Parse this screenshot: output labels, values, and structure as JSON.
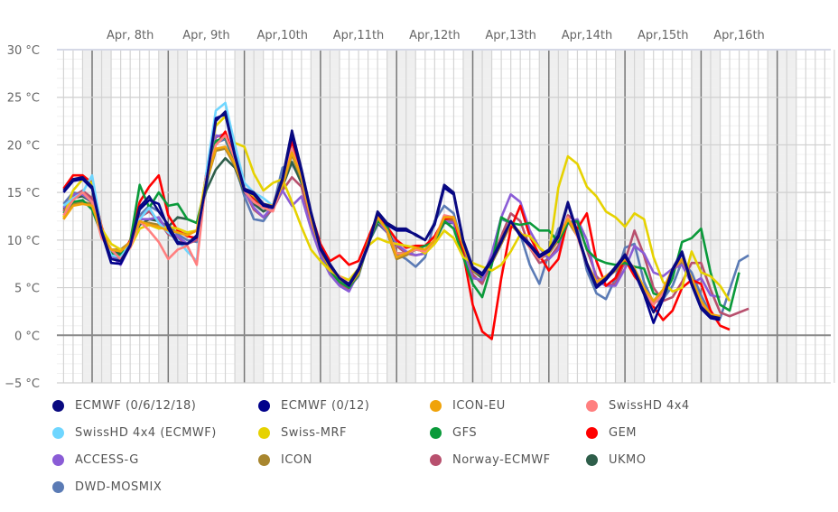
{
  "chart_data": {
    "type": "line",
    "title": "",
    "xlabel": "",
    "ylabel": "",
    "unit": "°C",
    "ylim": [
      -5,
      30
    ],
    "y_ticks": [
      "30 °C",
      "25 °C",
      "20 °C",
      "15 °C",
      "10 °C",
      "5 °C",
      "0 °C",
      "−5 °C"
    ],
    "y_tick_values": [
      30,
      25,
      20,
      15,
      10,
      5,
      0,
      -5
    ],
    "x_day_labels": [
      "Apr, 8th",
      "Apr, 9th",
      "Apr,10th",
      "Apr,11th",
      "Apr,12th",
      "Apr,13th",
      "Apr,14th",
      "Apr,15th",
      "Apr,16th"
    ],
    "x_range_hours": [
      13,
      261
    ],
    "x_step_hours": 3,
    "start_hour": 15,
    "grid": true,
    "night_shading": "21:00-06:00",
    "legend_position": "bottom",
    "series": [
      {
        "name": "ECMWF (0/6/12/18)",
        "color": "#0a0a80",
        "values": [
          15.2,
          16.4,
          16.6,
          15.6,
          11,
          8,
          7.8,
          9.5,
          13.5,
          14.6,
          13,
          11.6,
          9.8,
          9.6,
          10.5,
          16,
          22.5,
          23.5,
          19,
          15.4,
          15,
          13.8,
          13.5,
          16.5,
          21.5,
          17.5,
          13,
          9.2,
          7.5,
          6,
          5.4,
          7,
          9.5,
          13,
          11.8,
          11.2,
          11.2,
          10.5,
          10,
          11.8,
          15.8,
          15,
          10,
          7.2,
          6.5,
          8,
          10,
          12,
          10.6,
          9.6,
          8.4,
          9,
          10.5,
          14,
          10.8,
          7.6,
          5.2,
          6,
          7.2,
          8.5,
          6.8,
          4.5,
          2.4,
          4,
          7,
          8.8,
          5.5,
          3,
          2,
          1.8
        ]
      },
      {
        "name": "ECMWF (0/12)",
        "color": "#00008b",
        "values": [
          15,
          16.2,
          16.4,
          15.4,
          10.8,
          7.6,
          7.5,
          9.4,
          13.2,
          14.2,
          13.8,
          11.2,
          9.6,
          9.6,
          10.3,
          16,
          22.8,
          23.2,
          18.8,
          15.2,
          14.8,
          13.6,
          13.4,
          16.3,
          21,
          17.2,
          12.8,
          9,
          7.3,
          6,
          5.2,
          6.8,
          9.3,
          12.8,
          11.6,
          11,
          11,
          10.6,
          10,
          11.6,
          15.5,
          14.8,
          9.8,
          7,
          6.3,
          7.8,
          9.8,
          12,
          10.4,
          9.4,
          8.2,
          8.8,
          10.3,
          13.8,
          10.6,
          7.4,
          5,
          5.8,
          7,
          8.3,
          6.6,
          4.3,
          1.3,
          3.8,
          6.8,
          8.6,
          5.3,
          2.8,
          1.8,
          1.6
        ]
      },
      {
        "name": "ICON-EU",
        "color": "#f0a30a",
        "values": [
          12.2,
          13.6,
          13.8,
          13.6,
          10.8,
          9,
          8.8,
          9.8,
          12,
          11.6,
          11.4,
          11,
          10.8,
          10.5,
          11,
          16.2,
          19.6,
          19.8,
          18,
          15.4,
          14.6,
          13.8,
          13.6,
          15.8,
          19.2,
          16.6,
          12.4,
          9,
          7,
          6,
          5.2,
          6.5,
          9.8,
          12.4,
          11,
          8.2,
          8.6,
          9.2,
          9,
          10,
          12.4,
          12.4,
          9.4,
          7,
          6.4,
          7.8,
          9.8,
          11.8,
          10.8,
          9.4,
          8.2,
          8.8,
          10.2,
          12.2,
          10.6,
          7.6,
          5.6,
          6.2,
          7,
          8,
          7,
          5,
          3.6,
          4.8,
          7,
          8,
          6,
          3.6,
          2.2,
          2
        ]
      },
      {
        "name": "SwissHD 4x4",
        "color": "#ff7f7f",
        "values": [
          12.6,
          14.2,
          15,
          14,
          10.2,
          9,
          8,
          9.2,
          12,
          11,
          9.8,
          8,
          9,
          9.4,
          7.4,
          16.5,
          20,
          21,
          18.5,
          15.2,
          14,
          13.4,
          13,
          16,
          19.6,
          16.5,
          12.2,
          9.2,
          7,
          6.2,
          5.4,
          6.6,
          9.6,
          12.4,
          11,
          8.6,
          8.6,
          9,
          8.8,
          10,
          12.6,
          12.4,
          9.4,
          7,
          6.4,
          7.8,
          9.8,
          12,
          10.6,
          9.2,
          8,
          8.8,
          10.2,
          12.4,
          10.4,
          7.4,
          5.4,
          6,
          7,
          8.2,
          7,
          4.6,
          3.2,
          4.4,
          6.8,
          8,
          5.8,
          3.4,
          2,
          1.8
        ]
      },
      {
        "name": "SwissHD 4x4 (ECMWF)",
        "color": "#6fd6ff",
        "values": [
          13.6,
          14.4,
          15,
          16.8,
          11,
          8.4,
          8.2,
          9.6,
          12.2,
          13.4,
          11.8,
          10.8,
          10,
          8.8,
          7.8,
          17,
          23.6,
          24.4,
          20,
          16,
          15,
          14.4,
          13.6,
          16
        ]
      },
      {
        "name": "Swiss-MRF",
        "color": "#e6d200",
        "values": [
          12.4,
          15.2,
          16.4,
          16,
          11.2,
          9.6,
          9,
          9.2,
          11.2,
          11.6,
          11.2,
          11.4,
          11.2,
          10.8,
          11,
          16.8,
          22,
          23,
          20.2,
          19.8,
          17,
          15.2,
          16,
          16.4,
          14,
          11.4,
          9,
          7.8,
          6.8,
          6.2,
          5.8,
          7,
          9.4,
          10.2,
          9.8,
          9.6,
          9.4,
          9.2,
          8.6,
          9.6,
          11,
          10.2,
          8.2,
          7.6,
          7.2,
          6.8,
          7.4,
          8.8,
          10.6,
          10.4,
          9.2,
          8.4,
          15.5,
          18.8,
          18,
          15.6,
          14.6,
          13,
          12.4,
          11.4,
          12.8,
          12.2,
          8.2,
          5.6,
          4.6,
          5,
          8.8,
          6.6,
          6.2,
          5.2,
          3.6
        ]
      },
      {
        "name": "GFS",
        "color": "#0a9a3a",
        "values": [
          12.8,
          14,
          14.2,
          13.2,
          10.6,
          8.6,
          8.4,
          9.8,
          15.8,
          13.4,
          15,
          13.6,
          13.8,
          12.2,
          11.8,
          16,
          20.4,
          20.8,
          18.4,
          15.2,
          14.6,
          13.6,
          13.6,
          16.2,
          19.6,
          16.4,
          12.4,
          9.2,
          6.8,
          5.6,
          5,
          6.4,
          9.6,
          12,
          11.4,
          8.6,
          8.6,
          9,
          9.4,
          9.8,
          12,
          11.2,
          8.2,
          5.4,
          4,
          7.4,
          12.4,
          11.8,
          11.6,
          11.8,
          11,
          11,
          9.8,
          11.8,
          12,
          9,
          8,
          7.6,
          7.4,
          7.6,
          7.2,
          7,
          4.4,
          4,
          6,
          9.8,
          10.2,
          11.2,
          6.6,
          3.2,
          2.6,
          6.6
        ]
      },
      {
        "name": "GEM",
        "color": "#ff0000",
        "values": [
          15.4,
          16.8,
          16.8,
          16,
          11.4,
          8.6,
          8.2,
          10,
          14,
          15.6,
          16.8,
          12.6,
          11,
          10.4,
          10.2,
          17,
          20,
          21.4,
          18.4,
          15.2,
          14.4,
          13.4,
          13.6,
          16.4,
          20.4,
          17,
          12.8,
          9.6,
          7.8,
          8.4,
          7.4,
          7.8,
          10.2,
          12.6,
          11.4,
          10,
          9.2,
          9.4,
          9.4,
          10.4,
          12.2,
          12.4,
          8.6,
          3.2,
          0.4,
          -0.4,
          6,
          11.2,
          13.6,
          10.4,
          8.4,
          6.8,
          8,
          12.2,
          11.2,
          12.8,
          7.8,
          5.2,
          6,
          8,
          6.2,
          5,
          3,
          1.6,
          2.6,
          5,
          5.8,
          5.4,
          2.6,
          1,
          0.6
        ]
      },
      {
        "name": "ACCESS-G",
        "color": "#8a5cd6",
        "values": [
          13.4,
          14.8,
          14.8,
          14,
          10.4,
          8.4,
          7.4,
          9.4,
          12.2,
          12.2,
          12.4,
          10.8,
          10.4,
          9.6,
          10.2,
          16.2,
          21,
          20.8,
          18.4,
          15.2,
          13.4,
          12.4,
          13.6,
          15.2,
          13.6,
          14.6,
          11.2,
          8.4,
          6.4,
          5.2,
          4.6,
          6.6,
          9.6,
          12,
          10.8,
          9.6,
          8.8,
          8.4,
          8.6,
          9.8,
          12,
          11.8,
          8.6,
          6,
          5.8,
          8.6,
          12.4,
          14.8,
          14,
          11,
          9.2,
          8,
          9,
          11.8,
          12.2,
          10,
          5.8,
          5.2,
          5.2,
          7,
          9.4,
          8.6,
          6.6,
          6.2,
          7,
          7.4,
          5.4,
          6,
          4.2,
          4
        ]
      },
      {
        "name": "ICON",
        "color": "#a8862e",
        "values": [
          12.2,
          13.8,
          14,
          13.8,
          10.6,
          9,
          9,
          9.8,
          11.8,
          11.8,
          11.6,
          11.2,
          10.8,
          10.6,
          11,
          16,
          19.4,
          19.6,
          17.8,
          15.2,
          14.4,
          13.6,
          13.4,
          15.6,
          19,
          16.4,
          12.2,
          8.8,
          6.8,
          5.8,
          5,
          6.4,
          9.6,
          12.2,
          10.8,
          8,
          8.4,
          9,
          8.8,
          9.8,
          12.2,
          12.2,
          9.2,
          6.8,
          6.2,
          7.6,
          9.6,
          11.6,
          10.6,
          9.2,
          8,
          8.6,
          10,
          12,
          10.4,
          7.4,
          5.4,
          6,
          6.8,
          7.8,
          6.8,
          4.8,
          3.4,
          4.6,
          6.8,
          7.8,
          5.8,
          3.4,
          2,
          1.8
        ]
      },
      {
        "name": "Norway-ECMWF",
        "color": "#b8506e",
        "values": [
          13,
          14.6,
          15.2,
          14.4,
          10.8,
          8.8,
          8,
          9.4,
          12.4,
          13,
          12,
          10.6,
          10.2,
          9.6,
          10,
          16.2,
          20.8,
          21.2,
          18.6,
          15.2,
          13.2,
          12.4,
          13.2,
          15.2,
          16.6,
          15.6,
          11.8,
          8.6,
          6.4,
          5.4,
          4.8,
          6.4,
          9.6,
          12.8,
          11,
          9.4,
          8.6,
          8.4,
          8.6,
          9.8,
          12.2,
          12,
          9,
          6.4,
          5.4,
          7.8,
          10.4,
          12.8,
          12,
          9.2,
          7.6,
          8,
          9.4,
          12.6,
          11.8,
          9,
          6.2,
          5.2,
          5.4,
          7.8,
          11,
          8.4,
          5,
          3.6,
          4,
          5.6,
          7.6,
          7.6,
          4.8,
          2.4,
          2,
          2.4,
          2.8
        ]
      },
      {
        "name": "UKMO",
        "color": "#2e5e4a",
        "values": [
          13.2,
          14.4,
          14.6,
          14,
          10.6,
          8.8,
          8.6,
          9.4,
          11.6,
          12.2,
          12,
          11.4,
          12.4,
          12.2,
          11.8,
          15.2,
          17.4,
          18.6,
          17.6,
          15,
          13.8,
          13,
          13.6,
          15.6,
          18.2,
          16,
          12,
          8.8,
          7,
          6,
          5.2,
          6.6,
          9.6,
          11.8,
          10.8,
          8.6,
          8.6,
          9,
          9,
          9.8,
          11.8,
          11.8,
          9.2,
          6.8,
          6,
          7.6,
          9.6,
          11.8,
          10.6,
          9.2,
          8,
          8.6,
          10,
          12,
          10.6,
          7.6,
          5.4,
          6,
          6.8,
          7.8,
          6.8,
          4.8,
          3.4,
          4.6,
          6.8,
          7.8,
          5.8,
          3.4,
          2,
          1.8
        ]
      },
      {
        "name": "DWD-MOSMIX",
        "color": "#5b7bb5",
        "values": [
          13.8,
          15,
          14.8,
          14.2,
          10.6,
          8.2,
          8,
          9.2,
          12.6,
          13.6,
          13,
          11.6,
          10.6,
          10,
          9.8,
          15.6,
          20.2,
          20.6,
          18,
          14.6,
          12.2,
          12,
          13.4,
          17.6,
          18,
          16.2,
          11.8,
          8.4,
          6.4,
          5.4,
          5,
          6.2,
          9.6,
          11.6,
          11.4,
          8.6,
          8,
          7.2,
          8.2,
          12,
          13.6,
          12.8,
          9,
          6.2,
          5.6,
          8.4,
          12.2,
          11.8,
          10.6,
          7.4,
          5.4,
          8.6,
          11.2,
          11.8,
          11.2,
          6.8,
          4.4,
          3.8,
          6,
          9.2,
          9.6,
          5.6,
          3.4,
          3.8,
          5.2,
          7.8,
          6.6,
          4.2,
          2.2,
          1.8,
          4.8,
          7.8,
          8.4
        ]
      }
    ]
  },
  "legend": {
    "items": [
      {
        "label": "ECMWF (0/6/12/18)",
        "color": "#0a0a80"
      },
      {
        "label": "ECMWF (0/12)",
        "color": "#00008b"
      },
      {
        "label": "ICON-EU",
        "color": "#f0a30a"
      },
      {
        "label": "SwissHD 4x4",
        "color": "#ff7f7f"
      },
      {
        "label": "SwissHD 4x4 (ECMWF)",
        "color": "#6fd6ff"
      },
      {
        "label": "Swiss-MRF",
        "color": "#e6d200"
      },
      {
        "label": "GFS",
        "color": "#0a9a3a"
      },
      {
        "label": "GEM",
        "color": "#ff0000"
      },
      {
        "label": "ACCESS-G",
        "color": "#8a5cd6"
      },
      {
        "label": "ICON",
        "color": "#a8862e"
      },
      {
        "label": "Norway-ECMWF",
        "color": "#b8506e"
      },
      {
        "label": "UKMO",
        "color": "#2e5e4a"
      },
      {
        "label": "DWD-MOSMIX",
        "color": "#5b7bb5"
      }
    ]
  }
}
